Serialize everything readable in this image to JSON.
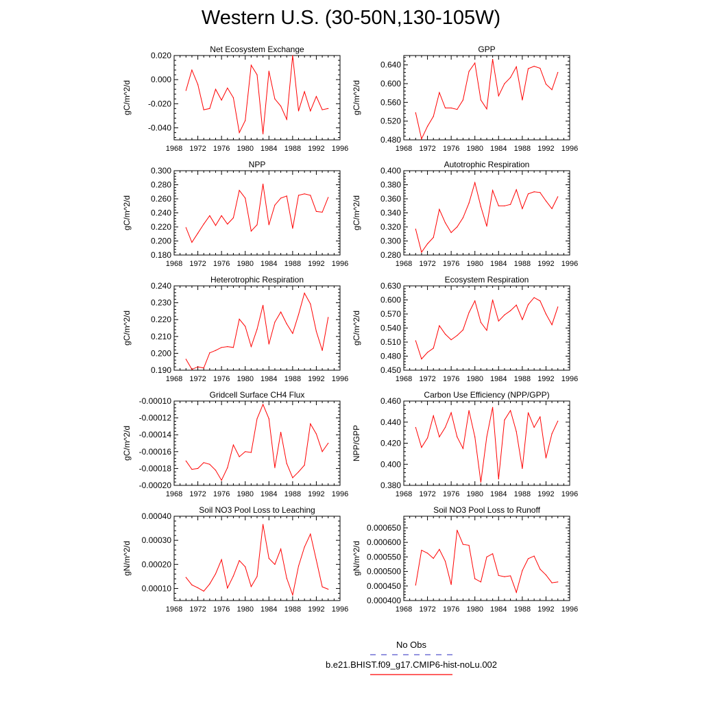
{
  "figure": {
    "title": "Western U.S. (30-50N,130-105W)",
    "legend": [
      {
        "label": "No Obs",
        "color": "#5555cc",
        "dash": true
      },
      {
        "label": "b.e21.BHIST.f09_g17.CMIP6-hist-noLu.002",
        "color": "#ff0000",
        "dash": false
      }
    ]
  },
  "chart_data": [
    {
      "type": "line",
      "title": "Net Ecosystem Exchange",
      "xlabel": "",
      "ylabel": "gC/m^2/d",
      "xlim": [
        1968,
        1996
      ],
      "ylim": [
        -0.05,
        0.02
      ],
      "yticks": [
        -0.04,
        -0.02,
        0.0,
        0.02
      ],
      "ytick_labels": [
        "-0.040",
        "-0.020",
        "0.000",
        "0.020"
      ],
      "xticks": [
        1968,
        1972,
        1976,
        1980,
        1984,
        1988,
        1992,
        1996
      ],
      "xtick_labels": [
        "1968",
        "1972",
        "1976",
        "1980",
        "1984",
        "1988",
        "1992",
        "1996"
      ],
      "series": [
        {
          "color": "#ff0000",
          "x": [
            1970,
            1971,
            1972,
            1973,
            1974,
            1975,
            1976,
            1977,
            1978,
            1979,
            1980,
            1981,
            1982,
            1983,
            1984,
            1985,
            1986,
            1987,
            1988,
            1989,
            1990,
            1991,
            1992,
            1993,
            1994
          ],
          "values": [
            -0.009,
            0.008,
            -0.004,
            -0.025,
            -0.024,
            -0.008,
            -0.017,
            -0.007,
            -0.015,
            -0.044,
            -0.034,
            0.012,
            0.004,
            -0.045,
            0.007,
            -0.016,
            -0.022,
            -0.033,
            0.02,
            -0.026,
            -0.01,
            -0.026,
            -0.014,
            -0.025,
            -0.024
          ]
        }
      ]
    },
    {
      "type": "line",
      "title": "GPP",
      "xlabel": "",
      "ylabel": "gC/m^2/d",
      "xlim": [
        1968,
        1996
      ],
      "ylim": [
        0.48,
        0.66
      ],
      "yticks": [
        0.48,
        0.52,
        0.56,
        0.6,
        0.64
      ],
      "ytick_labels": [
        "0.480",
        "0.520",
        "0.560",
        "0.600",
        "0.640"
      ],
      "xticks": [
        1968,
        1972,
        1976,
        1980,
        1984,
        1988,
        1992,
        1996
      ],
      "xtick_labels": [
        "1968",
        "1972",
        "1976",
        "1980",
        "1984",
        "1988",
        "1992",
        "1996"
      ],
      "series": [
        {
          "color": "#ff0000",
          "x": [
            1970,
            1971,
            1972,
            1973,
            1974,
            1975,
            1976,
            1977,
            1978,
            1979,
            1980,
            1981,
            1982,
            1983,
            1984,
            1985,
            1986,
            1987,
            1988,
            1989,
            1990,
            1991,
            1992,
            1993,
            1994
          ],
          "values": [
            0.538,
            0.482,
            0.509,
            0.53,
            0.581,
            0.548,
            0.548,
            0.545,
            0.565,
            0.626,
            0.644,
            0.565,
            0.546,
            0.652,
            0.574,
            0.6,
            0.613,
            0.636,
            0.565,
            0.632,
            0.637,
            0.633,
            0.599,
            0.587,
            0.624
          ]
        }
      ]
    },
    {
      "type": "line",
      "title": "NPP",
      "xlabel": "",
      "ylabel": "gC/m^2/d",
      "xlim": [
        1968,
        1996
      ],
      "ylim": [
        0.18,
        0.3
      ],
      "yticks": [
        0.18,
        0.2,
        0.22,
        0.24,
        0.26,
        0.28,
        0.3
      ],
      "ytick_labels": [
        "0.180",
        "0.200",
        "0.220",
        "0.240",
        "0.260",
        "0.280",
        "0.300"
      ],
      "xticks": [
        1968,
        1972,
        1976,
        1980,
        1984,
        1988,
        1992,
        1996
      ],
      "xtick_labels": [
        "1968",
        "1972",
        "1976",
        "1980",
        "1984",
        "1988",
        "1992",
        "1996"
      ],
      "series": [
        {
          "color": "#ff0000",
          "x": [
            1970,
            1971,
            1972,
            1973,
            1974,
            1975,
            1976,
            1977,
            1978,
            1979,
            1980,
            1981,
            1982,
            1983,
            1984,
            1985,
            1986,
            1987,
            1988,
            1989,
            1990,
            1991,
            1992,
            1993,
            1994
          ],
          "values": [
            0.219,
            0.198,
            0.211,
            0.224,
            0.236,
            0.222,
            0.236,
            0.224,
            0.233,
            0.272,
            0.261,
            0.214,
            0.223,
            0.281,
            0.223,
            0.251,
            0.261,
            0.264,
            0.218,
            0.265,
            0.267,
            0.265,
            0.242,
            0.241,
            0.262
          ]
        }
      ]
    },
    {
      "type": "line",
      "title": "Autotrophic Respiration",
      "xlabel": "",
      "ylabel": "gC/m^2/d",
      "xlim": [
        1968,
        1996
      ],
      "ylim": [
        0.28,
        0.4
      ],
      "yticks": [
        0.28,
        0.3,
        0.32,
        0.34,
        0.36,
        0.38,
        0.4
      ],
      "ytick_labels": [
        "0.280",
        "0.300",
        "0.320",
        "0.340",
        "0.360",
        "0.380",
        "0.400"
      ],
      "xticks": [
        1968,
        1972,
        1976,
        1980,
        1984,
        1988,
        1992,
        1996
      ],
      "xtick_labels": [
        "1968",
        "1972",
        "1976",
        "1980",
        "1984",
        "1988",
        "1992",
        "1996"
      ],
      "series": [
        {
          "color": "#ff0000",
          "x": [
            1970,
            1971,
            1972,
            1973,
            1974,
            1975,
            1976,
            1977,
            1978,
            1979,
            1980,
            1981,
            1982,
            1983,
            1984,
            1985,
            1986,
            1987,
            1988,
            1989,
            1990,
            1991,
            1992,
            1993,
            1994
          ],
          "values": [
            0.317,
            0.284,
            0.296,
            0.305,
            0.345,
            0.326,
            0.312,
            0.32,
            0.333,
            0.354,
            0.383,
            0.349,
            0.321,
            0.372,
            0.35,
            0.35,
            0.352,
            0.373,
            0.346,
            0.367,
            0.37,
            0.369,
            0.357,
            0.346,
            0.363
          ]
        }
      ]
    },
    {
      "type": "line",
      "title": "Heterotrophic Respiration",
      "xlabel": "",
      "ylabel": "gC/m^2/d",
      "xlim": [
        1968,
        1996
      ],
      "ylim": [
        0.19,
        0.24
      ],
      "yticks": [
        0.19,
        0.2,
        0.21,
        0.22,
        0.23,
        0.24
      ],
      "ytick_labels": [
        "0.190",
        "0.200",
        "0.210",
        "0.220",
        "0.230",
        "0.240"
      ],
      "xticks": [
        1968,
        1972,
        1976,
        1980,
        1984,
        1988,
        1992,
        1996
      ],
      "xtick_labels": [
        "1968",
        "1972",
        "1976",
        "1980",
        "1984",
        "1988",
        "1992",
        "1996"
      ],
      "series": [
        {
          "color": "#ff0000",
          "x": [
            1970,
            1971,
            1972,
            1973,
            1974,
            1975,
            1976,
            1977,
            1978,
            1979,
            1980,
            1981,
            1982,
            1983,
            1984,
            1985,
            1986,
            1987,
            1988,
            1989,
            1990,
            1991,
            1992,
            1993,
            1994
          ],
          "values": [
            0.1965,
            0.1905,
            0.192,
            0.1913,
            0.2003,
            0.2017,
            0.2035,
            0.204,
            0.2035,
            0.2203,
            0.216,
            0.204,
            0.2143,
            0.2285,
            0.2055,
            0.2185,
            0.2245,
            0.2175,
            0.2118,
            0.223,
            0.2357,
            0.2293,
            0.213,
            0.2017,
            0.2213
          ]
        }
      ]
    },
    {
      "type": "line",
      "title": "Ecosystem Respiration",
      "xlabel": "",
      "ylabel": "gC/m^2/d",
      "xlim": [
        1968,
        1996
      ],
      "ylim": [
        0.45,
        0.63
      ],
      "yticks": [
        0.45,
        0.48,
        0.51,
        0.54,
        0.57,
        0.6,
        0.63
      ],
      "ytick_labels": [
        "0.450",
        "0.480",
        "0.510",
        "0.540",
        "0.570",
        "0.600",
        "0.630"
      ],
      "xticks": [
        1968,
        1972,
        1976,
        1980,
        1984,
        1988,
        1992,
        1996
      ],
      "xtick_labels": [
        "1968",
        "1972",
        "1976",
        "1980",
        "1984",
        "1988",
        "1992",
        "1996"
      ],
      "series": [
        {
          "color": "#ff0000",
          "x": [
            1970,
            1971,
            1972,
            1973,
            1974,
            1975,
            1976,
            1977,
            1978,
            1979,
            1980,
            1981,
            1982,
            1983,
            1984,
            1985,
            1986,
            1987,
            1988,
            1989,
            1990,
            1991,
            1992,
            1993,
            1994
          ],
          "values": [
            0.513,
            0.474,
            0.488,
            0.497,
            0.545,
            0.527,
            0.515,
            0.524,
            0.536,
            0.573,
            0.598,
            0.552,
            0.535,
            0.6,
            0.555,
            0.568,
            0.577,
            0.589,
            0.558,
            0.59,
            0.605,
            0.598,
            0.57,
            0.547,
            0.585
          ]
        }
      ]
    },
    {
      "type": "line",
      "title": "Gridcell Surface CH4 Flux",
      "xlabel": "",
      "ylabel": "gC/m^2/d",
      "xlim": [
        1968,
        1996
      ],
      "ylim": [
        -0.0002,
        -0.0001
      ],
      "yticks": [
        -0.0002,
        -0.00018,
        -0.00016,
        -0.00014,
        -0.00012,
        -0.0001
      ],
      "ytick_labels": [
        "-0.00020",
        "-0.00018",
        "-0.00016",
        "-0.00014",
        "-0.00012",
        "-0.00010"
      ],
      "xticks": [
        1968,
        1972,
        1976,
        1980,
        1984,
        1988,
        1992,
        1996
      ],
      "xtick_labels": [
        "1968",
        "1972",
        "1976",
        "1980",
        "1984",
        "1988",
        "1992",
        "1996"
      ],
      "series": [
        {
          "color": "#ff0000",
          "x": [
            1970,
            1971,
            1972,
            1973,
            1974,
            1975,
            1976,
            1977,
            1978,
            1979,
            1980,
            1981,
            1982,
            1983,
            1984,
            1985,
            1986,
            1987,
            1988,
            1989,
            1990,
            1991,
            1992,
            1993,
            1994
          ],
          "values": [
            -0.000171,
            -0.000181,
            -0.00018,
            -0.000173,
            -0.000175,
            -0.000182,
            -0.000194,
            -0.000179,
            -0.000152,
            -0.000166,
            -0.00016,
            -0.000161,
            -0.000121,
            -0.000104,
            -0.000121,
            -0.000179,
            -0.000137,
            -0.000174,
            -0.000191,
            -0.000184,
            -0.000176,
            -0.000127,
            -0.000139,
            -0.00016,
            -0.00015
          ]
        }
      ]
    },
    {
      "type": "line",
      "title": "Carbon Use Efficiency (NPP/GPP)",
      "xlabel": "",
      "ylabel": "NPP/GPP",
      "xlim": [
        1968,
        1996
      ],
      "ylim": [
        0.38,
        0.46
      ],
      "yticks": [
        0.38,
        0.4,
        0.42,
        0.44,
        0.46
      ],
      "ytick_labels": [
        "0.380",
        "0.400",
        "0.420",
        "0.440",
        "0.460"
      ],
      "xticks": [
        1968,
        1972,
        1976,
        1980,
        1984,
        1988,
        1992,
        1996
      ],
      "xtick_labels": [
        "1968",
        "1972",
        "1976",
        "1980",
        "1984",
        "1988",
        "1992",
        "1996"
      ],
      "series": [
        {
          "color": "#ff0000",
          "x": [
            1970,
            1971,
            1972,
            1973,
            1974,
            1975,
            1976,
            1977,
            1978,
            1979,
            1980,
            1981,
            1982,
            1983,
            1984,
            1985,
            1986,
            1987,
            1988,
            1989,
            1990,
            1991,
            1992,
            1993,
            1994
          ],
          "values": [
            0.435,
            0.416,
            0.425,
            0.446,
            0.426,
            0.435,
            0.449,
            0.426,
            0.415,
            0.451,
            0.426,
            0.383,
            0.426,
            0.454,
            0.386,
            0.442,
            0.451,
            0.431,
            0.396,
            0.449,
            0.435,
            0.445,
            0.406,
            0.429,
            0.441
          ]
        }
      ]
    },
    {
      "type": "line",
      "title": "Soil NO3 Pool Loss to Leaching",
      "xlabel": "",
      "ylabel": "gN/m^2/d",
      "xlim": [
        1968,
        1996
      ],
      "ylim": [
        5e-05,
        0.0004
      ],
      "yticks": [
        0.0001,
        0.0002,
        0.0003,
        0.0004
      ],
      "ytick_labels": [
        "0.00010",
        "0.00020",
        "0.00030",
        "0.00040"
      ],
      "xticks": [
        1968,
        1972,
        1976,
        1980,
        1984,
        1988,
        1992,
        1996
      ],
      "xtick_labels": [
        "1968",
        "1972",
        "1976",
        "1980",
        "1984",
        "1988",
        "1992",
        "1996"
      ],
      "series": [
        {
          "color": "#ff0000",
          "x": [
            1970,
            1971,
            1972,
            1973,
            1974,
            1975,
            1976,
            1977,
            1978,
            1979,
            1980,
            1981,
            1982,
            1983,
            1984,
            1985,
            1986,
            1987,
            1988,
            1989,
            1990,
            1991,
            1992,
            1993,
            1994
          ],
          "values": [
            0.000146,
            0.000115,
            0.000103,
            8.9e-05,
            0.000119,
            0.000161,
            0.00022,
            0.000102,
            0.000152,
            0.000216,
            0.00019,
            0.000108,
            0.00015,
            0.000366,
            0.000225,
            0.0002,
            0.000264,
            0.000143,
            7.3e-05,
            0.000193,
            0.000272,
            0.000326,
            0.000218,
            0.000107,
            9.7e-05
          ]
        }
      ]
    },
    {
      "type": "line",
      "title": "Soil NO3 Pool Loss to Runoff",
      "xlabel": "",
      "ylabel": "gN/m^2/d",
      "xlim": [
        1968,
        1996
      ],
      "ylim": [
        0.0004,
        0.00069
      ],
      "yticks": [
        0.0004,
        0.00045,
        0.0005,
        0.00055,
        0.0006,
        0.00065
      ],
      "ytick_labels": [
        "0.000400",
        "0.000450",
        "0.000500",
        "0.000550",
        "0.000600",
        "0.000650"
      ],
      "xticks": [
        1968,
        1972,
        1976,
        1980,
        1984,
        1988,
        1992,
        1996
      ],
      "xtick_labels": [
        "1968",
        "1972",
        "1976",
        "1980",
        "1984",
        "1988",
        "1992",
        "1996"
      ],
      "series": [
        {
          "color": "#ff0000",
          "x": [
            1970,
            1971,
            1972,
            1973,
            1974,
            1975,
            1976,
            1977,
            1978,
            1979,
            1980,
            1981,
            1982,
            1983,
            1984,
            1985,
            1986,
            1987,
            1988,
            1989,
            1990,
            1991,
            1992,
            1993,
            1994
          ],
          "values": [
            0.000453,
            0.000573,
            0.000563,
            0.000545,
            0.000576,
            0.000535,
            0.000455,
            0.000642,
            0.000593,
            0.00059,
            0.000475,
            0.000464,
            0.00055,
            0.000561,
            0.000486,
            0.000482,
            0.000485,
            0.000428,
            0.000503,
            0.000544,
            0.000553,
            0.000508,
            0.000488,
            0.000461,
            0.000464
          ]
        }
      ]
    }
  ]
}
